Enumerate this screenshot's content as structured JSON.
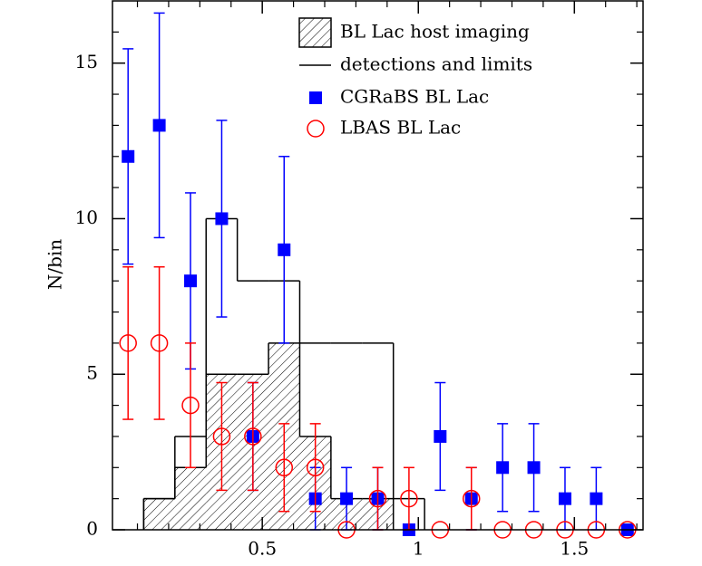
{
  "chart_data": {
    "type": "scatter",
    "ylabel": "N/bin",
    "xlim": [
      0.02,
      1.72
    ],
    "ylim": [
      0,
      17
    ],
    "xticks": [
      0.5,
      1,
      1.5
    ],
    "yticks": [
      0,
      5,
      10,
      15
    ],
    "xminorticks": [
      0.1,
      0.2,
      0.3,
      0.4,
      0.6,
      0.7,
      0.8,
      0.9,
      1.1,
      1.2,
      1.3,
      1.4,
      1.6,
      1.7
    ],
    "yminorticks": [
      1,
      2,
      3,
      4,
      6,
      7,
      8,
      9,
      11,
      12,
      13,
      14,
      16
    ],
    "legend": "upper right",
    "histograms": [
      {
        "name": "BL Lac host imaging",
        "hatched": true,
        "color": "#000000",
        "bins": [
          0.12,
          0.22,
          0.32,
          0.42,
          0.52,
          0.62,
          0.72,
          0.82,
          0.92
        ],
        "counts": [
          1,
          2,
          5,
          5,
          6,
          3,
          1,
          1
        ]
      },
      {
        "name": "detections and limits",
        "hatched": false,
        "color": "#000000",
        "bins": [
          0.12,
          0.22,
          0.32,
          0.42,
          0.52,
          0.62,
          0.72,
          0.82,
          0.92,
          1.02
        ],
        "counts": [
          1,
          3,
          10,
          8,
          8,
          6,
          6,
          6,
          1
        ]
      }
    ],
    "series": [
      {
        "name": "CGRaBS BL Lac",
        "color": "#0000ff",
        "marker": "square",
        "x": [
          0.07,
          0.17,
          0.27,
          0.37,
          0.47,
          0.57,
          0.67,
          0.77,
          0.87,
          0.97,
          1.07,
          1.17,
          1.27,
          1.37,
          1.47,
          1.57,
          1.67
        ],
        "values": [
          12,
          13,
          8,
          10,
          3,
          9,
          1,
          1,
          1,
          0,
          3,
          1,
          2,
          2,
          1,
          1,
          0
        ],
        "errors": [
          3.46,
          3.61,
          2.83,
          3.16,
          1.73,
          3,
          1,
          1,
          1,
          0,
          1.73,
          1,
          1.41,
          1.41,
          1,
          1,
          0
        ]
      },
      {
        "name": "LBAS BL Lac",
        "color": "#ff0000",
        "marker": "circle",
        "x": [
          0.07,
          0.17,
          0.27,
          0.37,
          0.47,
          0.57,
          0.67,
          0.77,
          0.87,
          0.97,
          1.07,
          1.17,
          1.27,
          1.37,
          1.47,
          1.57,
          1.67
        ],
        "values": [
          6,
          6,
          4,
          3,
          3,
          2,
          2,
          0,
          1,
          1,
          0,
          1,
          0,
          0,
          0,
          0,
          0
        ],
        "errors": [
          2.45,
          2.45,
          2,
          1.73,
          1.73,
          1.41,
          1.41,
          0,
          1,
          1,
          0,
          1,
          0,
          0,
          0,
          0,
          0
        ]
      }
    ]
  }
}
